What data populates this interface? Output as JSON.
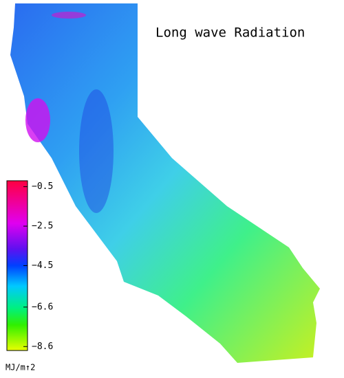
{
  "title": "Long wave Radiation",
  "colorbar": {
    "unit": "MJ/m↑2",
    "lim": [
      -8.8,
      -0.2
    ],
    "ticks": [
      {
        "value": -0.5,
        "label": "−0.5"
      },
      {
        "value": -2.5,
        "label": "−2.5"
      },
      {
        "value": -4.5,
        "label": "−4.5"
      },
      {
        "value": -6.6,
        "label": "−6.6"
      },
      {
        "value": -8.6,
        "label": "−8.6"
      }
    ]
  }
}
